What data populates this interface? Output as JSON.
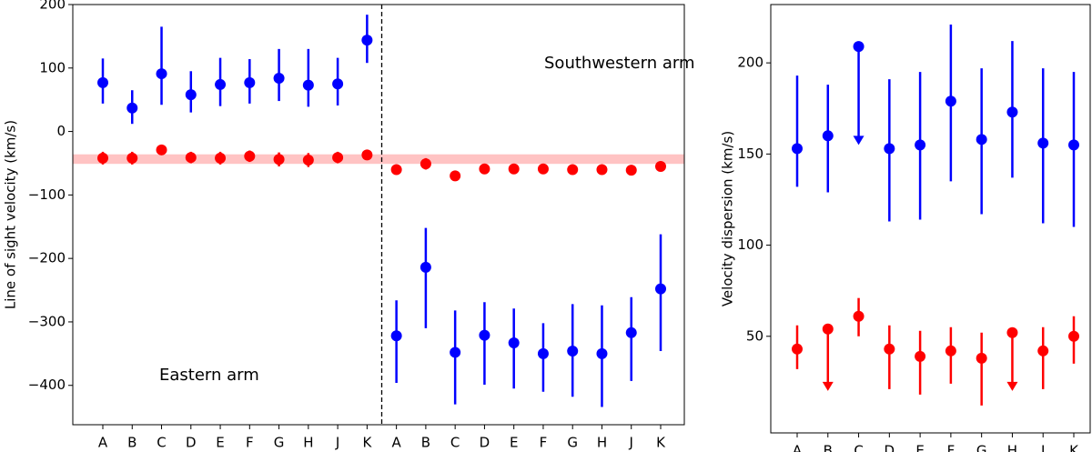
{
  "chart_data": [
    {
      "type": "errorbar",
      "y_label": "Line of sight velocity (km/s)",
      "categories": [
        "A",
        "B",
        "C",
        "D",
        "E",
        "F",
        "G",
        "H",
        "J",
        "K",
        "A",
        "B",
        "C",
        "D",
        "E",
        "F",
        "G",
        "H",
        "J",
        "K"
      ],
      "annotations": [
        "Eastern arm",
        "Southwestern arm"
      ],
      "ylim": [
        -462,
        200
      ],
      "yticks": [
        {
          "value": -400,
          "label": "−400"
        },
        {
          "value": -300,
          "label": "−300"
        },
        {
          "value": -200,
          "label": "−200"
        },
        {
          "value": -100,
          "label": "−100"
        },
        0,
        100,
        200
      ],
      "band": [
        -51,
        -36
      ],
      "band_color": "#ffaaaa",
      "series": [
        {
          "color": "#0000ff",
          "values": [
            77,
            37,
            91,
            58,
            74,
            77,
            84,
            73,
            75,
            144,
            -322,
            -214,
            -348,
            -321,
            -333,
            -350,
            -346,
            -350,
            -317,
            -248
          ],
          "error_minus": [
            33,
            25,
            49,
            28,
            34,
            33,
            36,
            34,
            34,
            36,
            74,
            96,
            82,
            78,
            72,
            60,
            72,
            84,
            76,
            98
          ],
          "error_plus": [
            38,
            28,
            74,
            37,
            42,
            37,
            46,
            57,
            41,
            40,
            56,
            62,
            66,
            52,
            54,
            48,
            74,
            76,
            56,
            86
          ]
        },
        {
          "color": "#ff0000",
          "values": [
            -42,
            -42,
            -29,
            -41,
            -42,
            -39,
            -44,
            -45,
            -41,
            -37,
            -60,
            -51,
            -70,
            -59,
            -59,
            -59,
            -60,
            -60,
            -61,
            -55
          ],
          "error_minus": [
            10,
            10,
            6,
            9,
            10,
            9,
            11,
            11,
            9,
            8,
            6,
            9,
            5,
            6,
            6,
            5,
            6,
            7,
            5,
            7
          ],
          "error_plus": [
            10,
            10,
            6,
            9,
            10,
            9,
            11,
            11,
            9,
            8,
            6,
            9,
            5,
            6,
            6,
            5,
            6,
            7,
            5,
            7
          ]
        }
      ]
    },
    {
      "type": "errorbar",
      "y_label": "Velocity dispersion (km/s)",
      "categories": [
        "A",
        "B",
        "C",
        "D",
        "E",
        "F",
        "G",
        "H",
        "J",
        "K"
      ],
      "ylim": [
        -3,
        232
      ],
      "yticks": [
        50,
        100,
        150,
        200
      ],
      "series": [
        {
          "color": "#0000ff",
          "values": [
            153,
            160,
            209,
            153,
            155,
            179,
            158,
            173,
            156,
            155
          ],
          "error_minus": [
            21,
            31,
            54,
            40,
            41,
            44,
            41,
            36,
            44,
            45
          ],
          "error_plus": [
            40,
            28,
            null,
            38,
            40,
            42,
            39,
            39,
            41,
            40
          ],
          "upper_limit": [
            false,
            false,
            true,
            false,
            false,
            false,
            false,
            false,
            false,
            false
          ]
        },
        {
          "color": "#ff0000",
          "values": [
            43,
            54,
            61,
            43,
            39,
            42,
            38,
            52,
            42,
            50
          ],
          "error_minus": [
            11,
            34,
            11,
            22,
            21,
            18,
            26,
            32,
            21,
            15
          ],
          "error_plus": [
            13,
            null,
            10,
            13,
            14,
            13,
            14,
            null,
            13,
            11
          ],
          "upper_limit": [
            false,
            true,
            false,
            false,
            false,
            false,
            false,
            true,
            false,
            false
          ]
        }
      ]
    }
  ]
}
